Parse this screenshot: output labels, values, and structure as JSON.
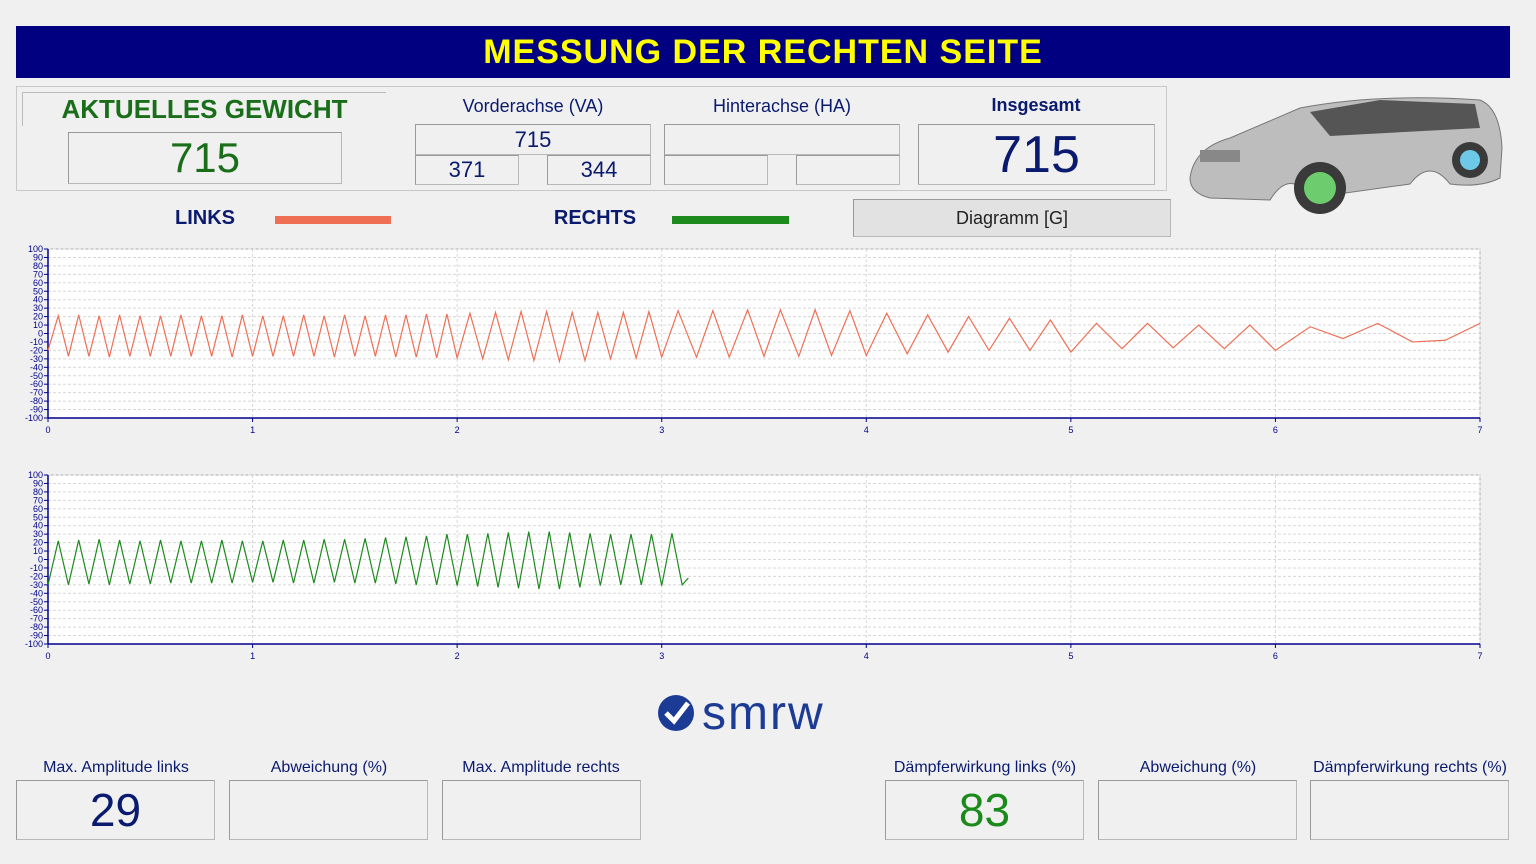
{
  "header": {
    "title": "MESSUNG DER RECHTEN SEITE"
  },
  "weight": {
    "label": "AKTUELLES GEWICHT",
    "value": 715
  },
  "front_axle": {
    "label": "Vorderachse (VA)",
    "total": 715,
    "left": 371,
    "right": 344
  },
  "rear_axle": {
    "label": "Hinterachse (HA)"
  },
  "overall": {
    "label": "Insgesamt",
    "value": 715
  },
  "button": {
    "label": "Diagramm [G]"
  },
  "logo": {
    "text": "smrw"
  },
  "results": [
    {
      "label": "Max. Amplitude links",
      "value": 29
    },
    {
      "label": "Abweichung (%)"
    },
    {
      "label": "Max. Amplitude rechts"
    },
    {
      "label": "Dämpferwirkung links (%)",
      "value": 83
    },
    {
      "label": "Abweichung (%)"
    },
    {
      "label": "Dämpferwirkung rechts (%)"
    }
  ],
  "chart_data": [
    {
      "type": "line",
      "grid": true,
      "xlim": [
        0,
        7
      ],
      "xticks": [
        0,
        1,
        2,
        3,
        4,
        5,
        6,
        7
      ],
      "ylim": [
        -100,
        100
      ],
      "yticks": [
        -100,
        -90,
        -80,
        -70,
        -60,
        -50,
        -40,
        -30,
        -20,
        -10,
        0,
        10,
        20,
        30,
        40,
        50,
        60,
        70,
        80,
        90,
        100
      ],
      "x": [
        0,
        0.05,
        0.1,
        0.15,
        0.2,
        0.25,
        0.3,
        0.35,
        0.4,
        0.45,
        0.5,
        0.55,
        0.6,
        0.65,
        0.7,
        0.75,
        0.8,
        0.85,
        0.9,
        0.95,
        1,
        1.05,
        1.1,
        1.15,
        1.2,
        1.25,
        1.3,
        1.35,
        1.4,
        1.45,
        1.5,
        1.55,
        1.6,
        1.65,
        1.7,
        1.75,
        1.8,
        1.85,
        1.9,
        1.95,
        2,
        2.0625,
        2.125,
        2.1875,
        2.25,
        2.3125,
        2.375,
        2.4375,
        2.5,
        2.5625,
        2.625,
        2.6875,
        2.75,
        2.8125,
        2.875,
        2.9375,
        3,
        3.08,
        3.17,
        3.25,
        3.33,
        3.42,
        3.5,
        3.58,
        3.67,
        3.75,
        3.83,
        3.92,
        4,
        4.1,
        4.2,
        4.3,
        4.4,
        4.5,
        4.6,
        4.7,
        4.8,
        4.9,
        5,
        5.125,
        5.25,
        5.375,
        5.5,
        5.625,
        5.75,
        5.875,
        6,
        6.17,
        6.33,
        6.5,
        6.67,
        6.83,
        7
      ],
      "series": [
        {
          "name": "LINKS",
          "color": "#ef6f55",
          "values": [
            -20,
            21,
            -27,
            22,
            -27,
            21,
            -28,
            22,
            -27,
            21,
            -27,
            21,
            -27,
            22,
            -27,
            21,
            -27,
            21,
            -28,
            22,
            -27,
            21,
            -27,
            21,
            -27,
            22,
            -27,
            21,
            -28,
            22,
            -27,
            21,
            -27,
            22,
            -28,
            22,
            -28,
            23,
            -29,
            23,
            -29,
            24,
            -30,
            25,
            -31,
            26,
            -32,
            26,
            -33,
            25,
            -32,
            25,
            -30,
            25,
            -29,
            26,
            -28,
            27,
            -28,
            27,
            -28,
            28,
            -27,
            28,
            -27,
            28,
            -26,
            27,
            -26,
            24,
            -24,
            22,
            -22,
            20,
            -20,
            18,
            -20,
            16,
            -22,
            12,
            -18,
            12,
            -17,
            10,
            -18,
            10,
            -20,
            8,
            -6,
            12,
            -10,
            -8,
            12
          ]
        }
      ]
    },
    {
      "type": "line",
      "grid": true,
      "xlim": [
        0,
        7
      ],
      "xticks": [
        0,
        1,
        2,
        3,
        4,
        5,
        6,
        7
      ],
      "ylim": [
        -100,
        100
      ],
      "yticks": [
        -100,
        -90,
        -80,
        -70,
        -60,
        -50,
        -40,
        -30,
        -20,
        -10,
        0,
        10,
        20,
        30,
        40,
        50,
        60,
        70,
        80,
        90,
        100
      ],
      "x": [
        0,
        0.05,
        0.1,
        0.15,
        0.2,
        0.25,
        0.3,
        0.35,
        0.4,
        0.45,
        0.5,
        0.55,
        0.6,
        0.65,
        0.7,
        0.75,
        0.8,
        0.85,
        0.9,
        0.95,
        1,
        1.05,
        1.1,
        1.15,
        1.2,
        1.25,
        1.3,
        1.35,
        1.4,
        1.45,
        1.5,
        1.55,
        1.6,
        1.65,
        1.7,
        1.75,
        1.8,
        1.85,
        1.9,
        1.95,
        2,
        2.05,
        2.1,
        2.15,
        2.2,
        2.25,
        2.3,
        2.35,
        2.4,
        2.45,
        2.5,
        2.55,
        2.6,
        2.65,
        2.7,
        2.75,
        2.8,
        2.85,
        2.9,
        2.95,
        3,
        3.05,
        3.1,
        3.13
      ],
      "series": [
        {
          "name": "RECHTS",
          "color": "#1d8a1d",
          "values": [
            -30,
            22,
            -30,
            23,
            -29,
            24,
            -30,
            23,
            -29,
            22,
            -29,
            23,
            -28,
            22,
            -28,
            22,
            -28,
            23,
            -28,
            22,
            -27,
            22,
            -27,
            23,
            -28,
            23,
            -28,
            24,
            -27,
            24,
            -28,
            25,
            -28,
            26,
            -29,
            27,
            -30,
            28,
            -30,
            30,
            -31,
            30,
            -32,
            31,
            -33,
            32,
            -34,
            33,
            -35,
            33,
            -35,
            32,
            -33,
            31,
            -31,
            30,
            -30,
            30,
            -30,
            30,
            -31,
            31,
            -30,
            -22
          ]
        }
      ]
    }
  ]
}
